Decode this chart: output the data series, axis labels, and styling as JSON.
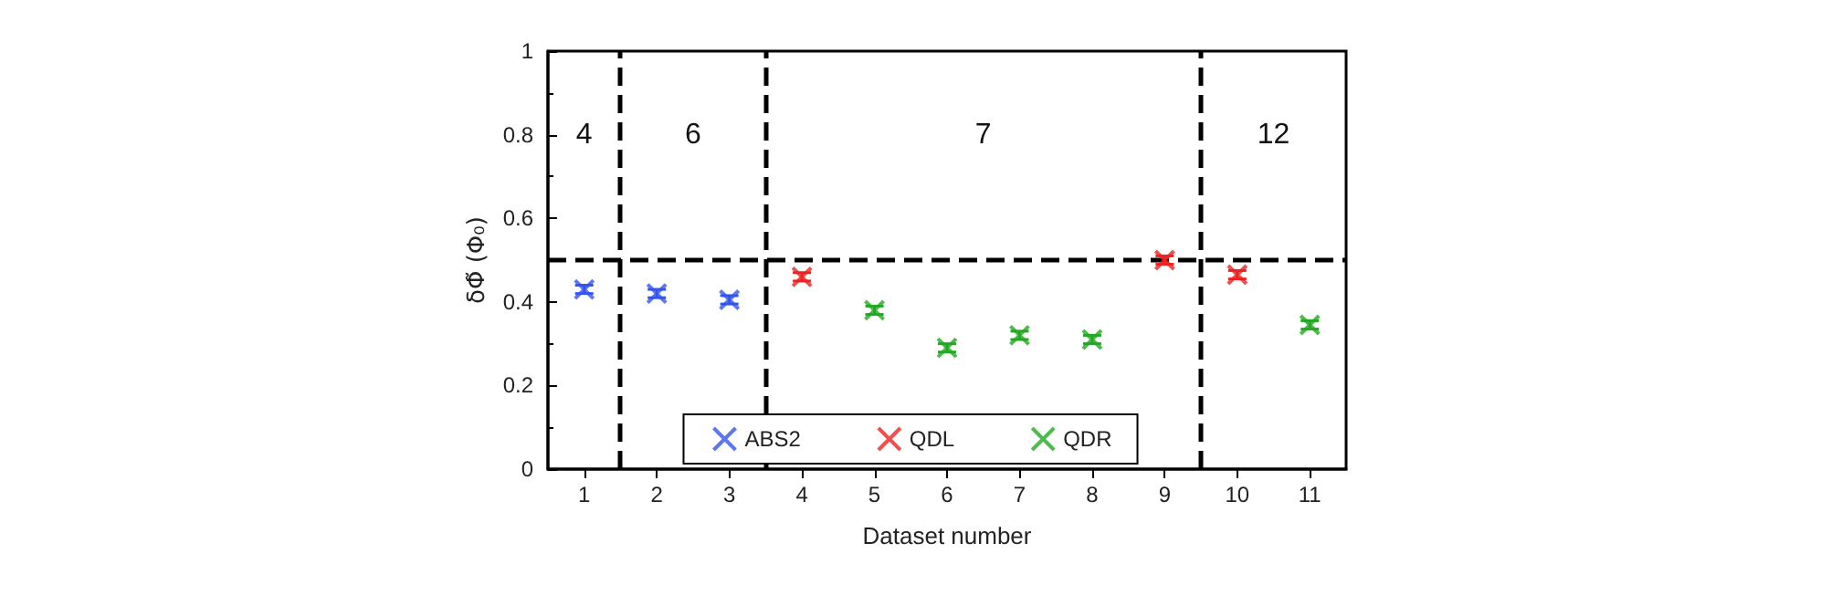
{
  "chart_data": {
    "type": "scatter",
    "xlabel": "Dataset number",
    "ylabel": "δΦ̃ (Φ₀)",
    "xlim": [
      0.5,
      11.5
    ],
    "xticks": [
      1,
      2,
      3,
      4,
      5,
      6,
      7,
      8,
      9,
      10,
      11
    ],
    "ylim": [
      0,
      1
    ],
    "yticks": [
      0,
      0.2,
      0.4,
      0.6,
      0.8,
      1
    ],
    "series": [
      {
        "name": "ABS2",
        "color": "#3355ee",
        "x": [
          1,
          2,
          3
        ],
        "values": [
          0.43,
          0.42,
          0.405
        ],
        "errors": [
          0.01,
          0.01,
          0.01
        ]
      },
      {
        "name": "QDL",
        "color": "#ee2222",
        "x": [
          4,
          9,
          10
        ],
        "values": [
          0.46,
          0.5,
          0.465
        ],
        "errors": [
          0.01,
          0.01,
          0.01
        ]
      },
      {
        "name": "QDR",
        "color": "#22aa22",
        "x": [
          5,
          6,
          7,
          8,
          11
        ],
        "values": [
          0.38,
          0.29,
          0.32,
          0.31,
          0.345
        ],
        "errors": [
          0.01,
          0.01,
          0.01,
          0.01,
          0.01
        ]
      }
    ],
    "ref_lines": [
      {
        "axis": "x",
        "value": 1.5,
        "line_style": "dashed",
        "color": "#000000"
      },
      {
        "axis": "x",
        "value": 3.5,
        "line_style": "dashed",
        "color": "#000000"
      },
      {
        "axis": "x",
        "value": 9.5,
        "line_style": "dashed",
        "color": "#000000"
      },
      {
        "axis": "y",
        "value": 0.5,
        "line_style": "dashed",
        "color": "#000000"
      }
    ],
    "annotations": [
      "4",
      "6",
      "7",
      "12"
    ],
    "marker": "cross",
    "legend": "bottom",
    "grid": false
  }
}
